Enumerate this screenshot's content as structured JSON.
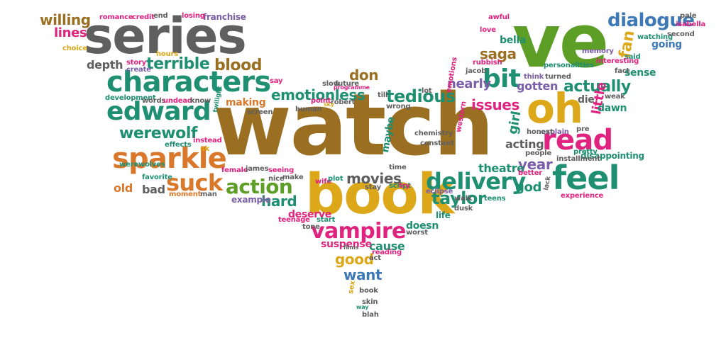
{
  "palette": {
    "brown": "#9a6f22",
    "green": "#5d9e27",
    "teal": "#1f8f72",
    "pink": "#e0237f",
    "gold": "#dca81a",
    "gray": "#5f5f5f",
    "purple": "#7b5da8",
    "orange": "#d9782b",
    "blue": "#3e79b5"
  },
  "words": [
    {
      "text": "watch",
      "color": "brown",
      "weight": 10
    },
    {
      "text": "ve",
      "color": "green",
      "weight": 9
    },
    {
      "text": "book",
      "color": "gold",
      "weight": 8
    },
    {
      "text": "series",
      "color": "gray",
      "weight": 8
    },
    {
      "text": "oh",
      "color": "gold",
      "weight": 6
    },
    {
      "text": "characters",
      "color": "teal",
      "weight": 5
    },
    {
      "text": "feel",
      "color": "teal",
      "weight": 5
    },
    {
      "text": "read",
      "color": "pink",
      "weight": 5
    },
    {
      "text": "sparkle",
      "color": "orange",
      "weight": 5
    },
    {
      "text": "edward",
      "color": "teal",
      "weight": 5
    },
    {
      "text": "delivery",
      "color": "teal",
      "weight": 4
    },
    {
      "text": "bit",
      "color": "teal",
      "weight": 4
    },
    {
      "text": "vampire",
      "color": "pink",
      "weight": 4
    },
    {
      "text": "suck",
      "color": "orange",
      "weight": 4
    },
    {
      "text": "action",
      "color": "green",
      "weight": 4
    },
    {
      "text": "dialogue",
      "color": "blue",
      "weight": 4
    },
    {
      "text": "werewolf",
      "color": "teal",
      "weight": 3
    },
    {
      "text": "tedious",
      "color": "teal",
      "weight": 3
    },
    {
      "text": "actually",
      "color": "teal",
      "weight": 3
    },
    {
      "text": "taylor",
      "color": "teal",
      "weight": 3
    },
    {
      "text": "emotionless",
      "color": "teal",
      "weight": 3
    },
    {
      "text": "blood",
      "color": "brown",
      "weight": 3
    },
    {
      "text": "terrible",
      "color": "teal",
      "weight": 3
    },
    {
      "text": "issues",
      "color": "pink",
      "weight": 3
    },
    {
      "text": "nearly",
      "color": "purple",
      "weight": 3
    },
    {
      "text": "movies",
      "color": "gray",
      "weight": 3
    },
    {
      "text": "saga",
      "color": "brown",
      "weight": 3
    },
    {
      "text": "don",
      "color": "brown",
      "weight": 3
    },
    {
      "text": "hard",
      "color": "teal",
      "weight": 3
    },
    {
      "text": "year",
      "color": "purple",
      "weight": 3
    },
    {
      "text": "god",
      "color": "teal",
      "weight": 3
    },
    {
      "text": "willing",
      "color": "brown",
      "weight": 2
    },
    {
      "text": "lines",
      "color": "pink",
      "weight": 2
    },
    {
      "text": "depth",
      "color": "gray",
      "weight": 2
    },
    {
      "text": "old",
      "color": "orange",
      "weight": 2
    },
    {
      "text": "bad",
      "color": "gray",
      "weight": 2
    },
    {
      "text": "good",
      "color": "gold",
      "weight": 2
    },
    {
      "text": "want",
      "color": "blue",
      "weight": 2
    },
    {
      "text": "cause",
      "color": "teal",
      "weight": 2
    },
    {
      "text": "gotten",
      "color": "purple",
      "weight": 2
    },
    {
      "text": "acting",
      "color": "gray",
      "weight": 2
    },
    {
      "text": "theatre",
      "color": "teal",
      "weight": 2
    },
    {
      "text": "girl",
      "color": "teal",
      "weight": 2
    },
    {
      "text": "little",
      "color": "pink",
      "weight": 2
    },
    {
      "text": "fan",
      "color": "gold",
      "weight": 2
    },
    {
      "text": "sense",
      "color": "teal",
      "weight": 2
    },
    {
      "text": "dawn",
      "color": "teal",
      "weight": 2
    },
    {
      "text": "die",
      "color": "gray",
      "weight": 2
    },
    {
      "text": "maybe",
      "color": "teal",
      "weight": 2
    },
    {
      "text": "making",
      "color": "orange",
      "weight": 2
    },
    {
      "text": "deserve",
      "color": "pink",
      "weight": 2
    },
    {
      "text": "doesn",
      "color": "teal",
      "weight": 2
    },
    {
      "text": "suspense",
      "color": "pink",
      "weight": 2
    },
    {
      "text": "going",
      "color": "blue",
      "weight": 2
    },
    {
      "text": "bella",
      "color": "teal",
      "weight": 2
    },
    {
      "text": "franchise",
      "color": "purple",
      "weight": 1
    },
    {
      "text": "romance",
      "color": "pink",
      "weight": 1
    },
    {
      "text": "credit",
      "color": "pink",
      "weight": 1
    },
    {
      "text": "end",
      "color": "gray",
      "weight": 1
    },
    {
      "text": "losing",
      "color": "pink",
      "weight": 1
    },
    {
      "text": "choice",
      "color": "gold",
      "weight": 1
    },
    {
      "text": "story",
      "color": "pink",
      "weight": 1
    },
    {
      "text": "create",
      "color": "purple",
      "weight": 1
    },
    {
      "text": "hours",
      "color": "gold",
      "weight": 1
    },
    {
      "text": "development",
      "color": "teal",
      "weight": 1
    },
    {
      "text": "words",
      "color": "gray",
      "weight": 1
    },
    {
      "text": "undead",
      "color": "pink",
      "weight": 1
    },
    {
      "text": "know",
      "color": "gray",
      "weight": 1
    },
    {
      "text": "twilight",
      "color": "teal",
      "weight": 1
    },
    {
      "text": "screen",
      "color": "gray",
      "weight": 1
    },
    {
      "text": "werewolves",
      "color": "teal",
      "weight": 1
    },
    {
      "text": "effects",
      "color": "teal",
      "weight": 1
    },
    {
      "text": "instead",
      "color": "pink",
      "weight": 1
    },
    {
      "text": "ok",
      "color": "gold",
      "weight": 1
    },
    {
      "text": "favorite",
      "color": "teal",
      "weight": 1
    },
    {
      "text": "female",
      "color": "pink",
      "weight": 1
    },
    {
      "text": "james",
      "color": "gray",
      "weight": 1
    },
    {
      "text": "seeing",
      "color": "pink",
      "weight": 1
    },
    {
      "text": "moment",
      "color": "orange",
      "weight": 1
    },
    {
      "text": "man",
      "color": "gray",
      "weight": 1
    },
    {
      "text": "example",
      "color": "purple",
      "weight": 1
    },
    {
      "text": "nice",
      "color": "gray",
      "weight": 1
    },
    {
      "text": "make",
      "color": "gray",
      "weight": 1
    },
    {
      "text": "wife",
      "color": "pink",
      "weight": 1
    },
    {
      "text": "plot",
      "color": "teal",
      "weight": 1
    },
    {
      "text": "teenage",
      "color": "pink",
      "weight": 1
    },
    {
      "text": "tone",
      "color": "gray",
      "weight": 1
    },
    {
      "text": "start",
      "color": "teal",
      "weight": 1
    },
    {
      "text": "worst",
      "color": "gray",
      "weight": 1
    },
    {
      "text": "life",
      "color": "teal",
      "weight": 1
    },
    {
      "text": "say",
      "color": "pink",
      "weight": 1
    },
    {
      "text": "future",
      "color": "gray",
      "weight": 1
    },
    {
      "text": "point",
      "color": "pink",
      "weight": 1
    },
    {
      "text": "robert",
      "color": "gray",
      "weight": 1
    },
    {
      "text": "wrong",
      "color": "gray",
      "weight": 1
    },
    {
      "text": "human",
      "color": "gray",
      "weight": 1
    },
    {
      "text": "till",
      "color": "gray",
      "weight": 1
    },
    {
      "text": "lot",
      "color": "gray",
      "weight": 1
    },
    {
      "text": "emotions",
      "color": "pink",
      "weight": 1
    },
    {
      "text": "constant",
      "color": "gray",
      "weight": 1
    },
    {
      "text": "chemistry",
      "color": "gray",
      "weight": 1
    },
    {
      "text": "time",
      "color": "gray",
      "weight": 1
    },
    {
      "text": "script",
      "color": "teal",
      "weight": 1
    },
    {
      "text": "try",
      "color": "pink",
      "weight": 1
    },
    {
      "text": "eclipse",
      "color": "purple",
      "weight": 1
    },
    {
      "text": "walk",
      "color": "gray",
      "weight": 1
    },
    {
      "text": "teens",
      "color": "teal",
      "weight": 1
    },
    {
      "text": "dusk",
      "color": "gray",
      "weight": 1
    },
    {
      "text": "better",
      "color": "pink",
      "weight": 1
    },
    {
      "text": "lack",
      "color": "gray",
      "weight": 1
    },
    {
      "text": "experience",
      "color": "pink",
      "weight": 1
    },
    {
      "text": "disappointing",
      "color": "teal",
      "weight": 1
    },
    {
      "text": "pretty",
      "color": "teal",
      "weight": 1
    },
    {
      "text": "installment",
      "color": "gray",
      "weight": 1
    },
    {
      "text": "explain",
      "color": "purple",
      "weight": 1
    },
    {
      "text": "honest",
      "color": "gray",
      "weight": 1
    },
    {
      "text": "pre",
      "color": "gray",
      "weight": 1
    },
    {
      "text": "weak",
      "color": "gray",
      "weight": 1
    },
    {
      "text": "said",
      "color": "teal",
      "weight": 1
    },
    {
      "text": "fact",
      "color": "gray",
      "weight": 1
    },
    {
      "text": "memory",
      "color": "purple",
      "weight": 1
    },
    {
      "text": "interesting",
      "color": "pink",
      "weight": 1
    },
    {
      "text": "watching",
      "color": "teal",
      "weight": 1
    },
    {
      "text": "second",
      "color": "gray",
      "weight": 1
    },
    {
      "text": "pale",
      "color": "gray",
      "weight": 1
    },
    {
      "text": "isabella",
      "color": "pink",
      "weight": 1
    },
    {
      "text": "awful",
      "color": "pink",
      "weight": 1
    },
    {
      "text": "love",
      "color": "pink",
      "weight": 1
    },
    {
      "text": "rubbish",
      "color": "pink",
      "weight": 1
    },
    {
      "text": "personalities",
      "color": "teal",
      "weight": 1
    },
    {
      "text": "jacob",
      "color": "gray",
      "weight": 1
    },
    {
      "text": "think",
      "color": "purple",
      "weight": 1
    },
    {
      "text": "turned",
      "color": "gray",
      "weight": 1
    },
    {
      "text": "people",
      "color": "gray",
      "weight": 1
    },
    {
      "text": "western",
      "color": "pink",
      "weight": 1
    },
    {
      "text": "act",
      "color": "gray",
      "weight": 1
    },
    {
      "text": "reading",
      "color": "pink",
      "weight": 1
    },
    {
      "text": "films",
      "color": "gray",
      "weight": 1
    },
    {
      "text": "book",
      "color": "gray",
      "weight": 1
    },
    {
      "text": "skin",
      "color": "gray",
      "weight": 1
    },
    {
      "text": "sex",
      "color": "gold",
      "weight": 1
    },
    {
      "text": "way",
      "color": "teal",
      "weight": 1
    },
    {
      "text": "blah",
      "color": "gray",
      "weight": 1
    },
    {
      "text": "sky",
      "color": "gold",
      "weight": 1
    },
    {
      "text": "programme",
      "color": "pink",
      "weight": 1
    },
    {
      "text": "slow",
      "color": "gray",
      "weight": 1
    },
    {
      "text": "stay",
      "color": "gray",
      "weight": 1
    }
  ]
}
